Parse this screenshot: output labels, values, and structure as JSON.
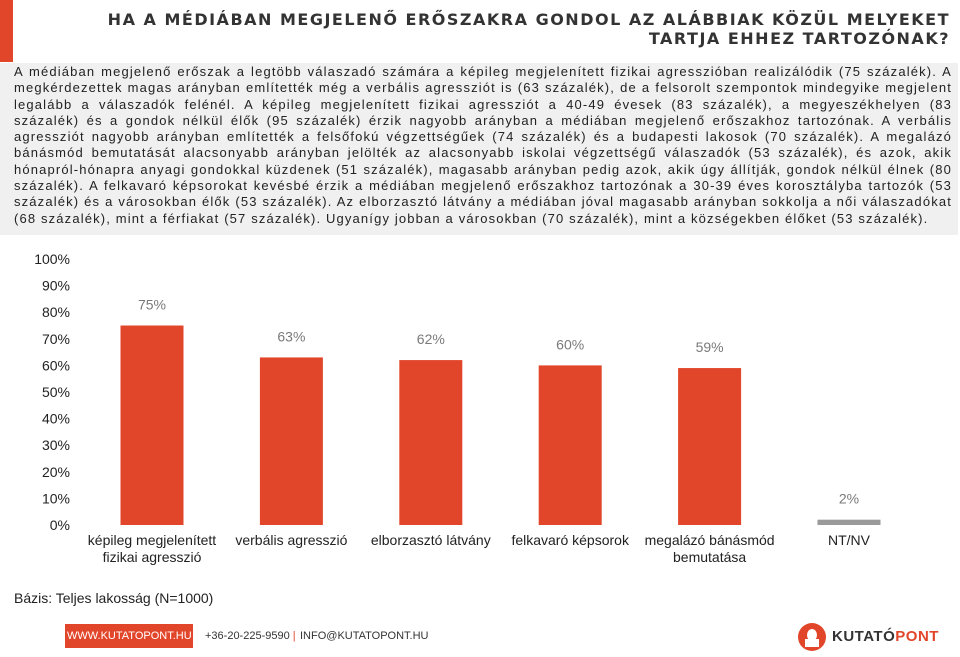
{
  "header": {
    "title_line1": "HA A MÉDIÁBAN MEGJELENŐ ERŐSZAKRA GONDOL AZ ALÁBBIAK KÖZÜL MELYEKET",
    "title_line2": "TARTJA EHHEZ TARTOZÓNAK?"
  },
  "summary": {
    "text": "A médiában megjelenő erőszak a legtöbb válaszadó számára a képileg megjelenített fizikai agresszióban realizálódik (75 százalék). A megkérdezettek magas arányban említették még a verbális agressziót is (63 százalék), de a felsorolt szempontok mindegyike megjelent legalább a válaszadók felénél. A képileg megjelenített fizikai agressziót a 40-49 évesek (83 százalék), a megyeszékhelyen (83 százalék) és a gondok nélkül élők (95 százalék) érzik nagyobb arányban a médiában megjelenő erőszakhoz tartozónak. A verbális agressziót nagyobb arányban említették a felsőfokú végzettségűek (74 százalék) és a budapesti lakosok (70 százalék). A megalázó bánásmód bemutatását alacsonyabb arányban jelölték az alacsonyabb iskolai végzettségű válaszadók (53 százalék), és azok, akik hónapról-hónapra anyagi gondokkal küzdenek (51 százalék), magasabb arányban pedig azok, akik úgy állítják, gondok nélkül élnek (80 százalék). A felkavaró képsorokat kevésbé érzik a médiában megjelenő erőszakhoz tartozónak a 30-39 éves korosztályba tartozók (53 százalék) és a városokban élők (53 százalék). Az elborzasztó látvány a médiában jóval magasabb arányban sokkolja a női válaszadókat (68 százalék), mint a férfiakat (57 százalék). Ugyanígy jobban a városokban (70 százalék), mint a községekben élőket (53 százalék)."
  },
  "chart_data": {
    "type": "bar",
    "categories": [
      [
        "képileg megjelenített",
        "fizikai agresszió"
      ],
      [
        "verbális agresszió"
      ],
      [
        "elborzasztó látvány"
      ],
      [
        "felkavaró képsorok"
      ],
      [
        "megalázó bánásmód",
        "bemutatása"
      ],
      [
        "NT/NV"
      ]
    ],
    "values": [
      75,
      63,
      62,
      60,
      59,
      2
    ],
    "value_labels": [
      "75%",
      "63%",
      "62%",
      "60%",
      "59%",
      "2%"
    ],
    "bar_colors": [
      "#e2462a",
      "#e2462a",
      "#e2462a",
      "#e2462a",
      "#e2462a",
      "#9a9a9a"
    ],
    "yticks": [
      "0%",
      "10%",
      "20%",
      "30%",
      "40%",
      "50%",
      "60%",
      "70%",
      "80%",
      "90%",
      "100%"
    ],
    "ylim": [
      0,
      100
    ],
    "title": "",
    "xlabel": "",
    "ylabel": "",
    "grid": false,
    "legend": "none"
  },
  "basis": "Bázis: Teljes lakosság (N=1000)",
  "footer": {
    "website": "WWW.KUTATOPONT.HU",
    "phone": "+36-20-225-9590",
    "separator": "|",
    "email": "INFO@KUTATOPONT.HU"
  },
  "logo": {
    "part1": "KUTATÓ",
    "part2": "PONT"
  },
  "colors": {
    "accent": "#e2462a",
    "nt_bar": "#9a9a9a",
    "summary_bg": "#f0f0f0"
  }
}
